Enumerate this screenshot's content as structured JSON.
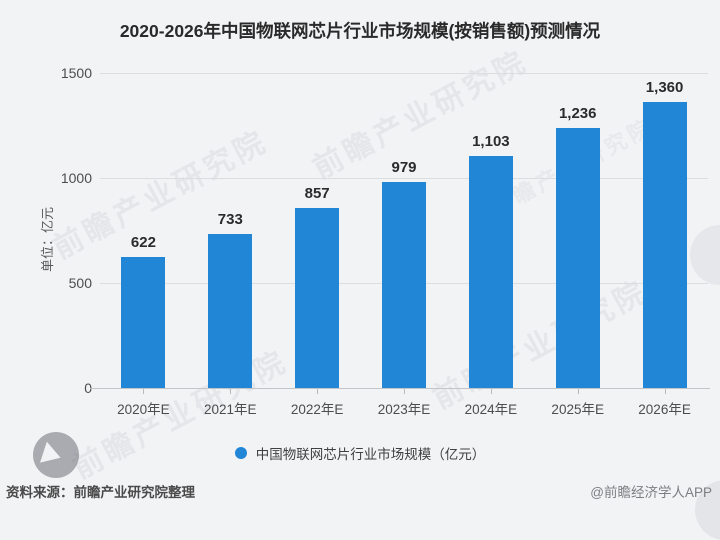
{
  "title": {
    "text": "2020-2026年中国物联网芯片行业市场规模(按销售额)预测情况"
  },
  "chart_data": {
    "type": "bar",
    "categories": [
      "2020年E",
      "2021年E",
      "2022年E",
      "2023年E",
      "2024年E",
      "2025年E",
      "2026年E"
    ],
    "values": [
      622,
      733,
      857,
      979,
      1103,
      1236,
      1360
    ],
    "value_labels": [
      "622",
      "733",
      "857",
      "979",
      "1,103",
      "1,236",
      "1,360"
    ],
    "title": "2020-2026年中国物联网芯片行业市场规模(按销售额)预测情况",
    "xlabel": "",
    "ylabel": "单位：亿元",
    "ylim": [
      0,
      1500
    ],
    "yticks": [
      0,
      500,
      1000,
      1500
    ],
    "grid": true,
    "bar_color": "#2286d7",
    "legend": [
      "中国物联网芯片行业市场规模（亿元）"
    ],
    "legend_position": "bottom"
  },
  "legend": {
    "label": "中国物联网芯片行业市场规模（亿元）"
  },
  "footer": {
    "source": "资料来源：前瞻产业研究院整理",
    "credit": "@前瞻经济学人APP"
  },
  "watermark": {
    "text": "前瞻产业研究院"
  }
}
